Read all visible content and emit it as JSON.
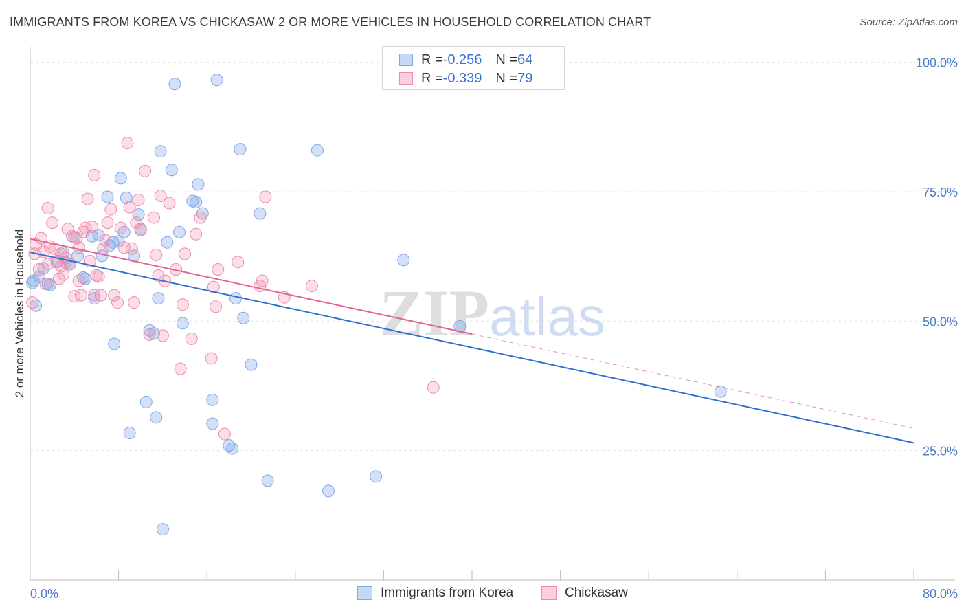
{
  "title": "IMMIGRANTS FROM KOREA VS CHICKASAW 2 OR MORE VEHICLES IN HOUSEHOLD CORRELATION CHART",
  "source": "Source: ZipAtlas.com",
  "watermark": {
    "zip": "ZIP",
    "atlas": "atlas"
  },
  "legend_top": [
    {
      "r_label": "R = ",
      "r_value": "-0.256",
      "n_label": "N = ",
      "n_value": "64",
      "color": "#7fa8e8"
    },
    {
      "r_label": "R = ",
      "r_value": "-0.339",
      "n_label": "N = ",
      "n_value": "79",
      "color": "#f08aaa"
    }
  ],
  "chart_data": {
    "type": "scatter",
    "title": "IMMIGRANTS FROM KOREA VS CHICKASAW 2 OR MORE VEHICLES IN HOUSEHOLD CORRELATION CHART",
    "xlabel": "",
    "ylabel": "2 or more Vehicles in Household",
    "xlim": [
      0,
      80
    ],
    "ylim": [
      0,
      103
    ],
    "x_tick_labels": [
      "0.0%",
      "80.0%"
    ],
    "y_ticks": [
      25,
      50,
      75,
      100
    ],
    "y_tick_labels": [
      "25.0%",
      "50.0%",
      "75.0%",
      "100.0%"
    ],
    "grid": true,
    "legend_position": "bottom",
    "series": [
      {
        "name": "Immigrants from Korea",
        "color": "#7fa8e8",
        "line_color": "#2e6fd0",
        "trend": {
          "x": [
            0,
            80
          ],
          "y": [
            63.3,
            26.5
          ],
          "dashed_extension": false
        },
        "points": [
          [
            0.3,
            57.8
          ],
          [
            0.5,
            53.0
          ],
          [
            0.8,
            58.6
          ],
          [
            1.2,
            60.2
          ],
          [
            1.6,
            57.2
          ],
          [
            1.8,
            57.0
          ],
          [
            2.5,
            61.6
          ],
          [
            3.0,
            63.2
          ],
          [
            3.2,
            61.4
          ],
          [
            4.0,
            66.2
          ],
          [
            4.3,
            62.6
          ],
          [
            4.8,
            58.4
          ],
          [
            5.0,
            58.2
          ],
          [
            5.6,
            66.4
          ],
          [
            5.8,
            54.4
          ],
          [
            6.2,
            66.6
          ],
          [
            6.5,
            62.6
          ],
          [
            7.0,
            74.0
          ],
          [
            7.2,
            64.6
          ],
          [
            7.5,
            65.2
          ],
          [
            7.6,
            45.6
          ],
          [
            8.0,
            65.4
          ],
          [
            8.2,
            77.6
          ],
          [
            8.5,
            67.2
          ],
          [
            8.7,
            73.8
          ],
          [
            9.0,
            28.4
          ],
          [
            9.4,
            62.6
          ],
          [
            9.8,
            70.6
          ],
          [
            10.0,
            67.8
          ],
          [
            10.5,
            34.4
          ],
          [
            10.8,
            48.2
          ],
          [
            11.2,
            47.6
          ],
          [
            11.4,
            31.4
          ],
          [
            11.6,
            54.4
          ],
          [
            11.8,
            82.8
          ],
          [
            12.0,
            9.8
          ],
          [
            12.4,
            65.2
          ],
          [
            12.8,
            79.2
          ],
          [
            13.1,
            95.8
          ],
          [
            13.5,
            67.2
          ],
          [
            13.8,
            49.6
          ],
          [
            14.7,
            73.2
          ],
          [
            15.0,
            73.0
          ],
          [
            15.2,
            76.4
          ],
          [
            15.6,
            70.8
          ],
          [
            16.5,
            30.2
          ],
          [
            16.5,
            34.8
          ],
          [
            16.9,
            96.6
          ],
          [
            18.0,
            26.0
          ],
          [
            18.3,
            25.4
          ],
          [
            18.6,
            54.4
          ],
          [
            19.0,
            83.2
          ],
          [
            19.3,
            50.6
          ],
          [
            20.0,
            41.6
          ],
          [
            20.8,
            70.8
          ],
          [
            21.5,
            19.2
          ],
          [
            26.0,
            83.0
          ],
          [
            27.0,
            17.2
          ],
          [
            31.3,
            20.0
          ],
          [
            33.8,
            61.8
          ],
          [
            38.9,
            49.0
          ],
          [
            62.5,
            36.4
          ],
          [
            0.2,
            57.4
          ],
          [
            3.6,
            61.0
          ]
        ]
      },
      {
        "name": "Chickasaw",
        "color": "#f08aaa",
        "line_color": "#e26590",
        "trend": {
          "x": [
            0,
            40
          ],
          "y": [
            65.9,
            47.5
          ],
          "dashed_to": [
            80,
            29.3
          ]
        },
        "points": [
          [
            0.2,
            53.6
          ],
          [
            0.5,
            64.8
          ],
          [
            0.8,
            60.0
          ],
          [
            1.0,
            66.0
          ],
          [
            1.2,
            63.4
          ],
          [
            1.4,
            57.2
          ],
          [
            1.6,
            71.8
          ],
          [
            1.8,
            64.4
          ],
          [
            2.0,
            69.0
          ],
          [
            2.2,
            64.0
          ],
          [
            2.4,
            61.4
          ],
          [
            2.6,
            58.2
          ],
          [
            2.8,
            63.0
          ],
          [
            3.0,
            59.0
          ],
          [
            3.2,
            62.2
          ],
          [
            3.4,
            67.8
          ],
          [
            3.6,
            61.0
          ],
          [
            3.8,
            66.4
          ],
          [
            4.0,
            54.8
          ],
          [
            4.2,
            66.0
          ],
          [
            4.4,
            64.2
          ],
          [
            4.6,
            55.0
          ],
          [
            4.8,
            67.2
          ],
          [
            5.0,
            68.0
          ],
          [
            5.2,
            73.6
          ],
          [
            5.4,
            61.6
          ],
          [
            5.6,
            68.2
          ],
          [
            5.8,
            78.2
          ],
          [
            6.0,
            58.8
          ],
          [
            6.2,
            58.6
          ],
          [
            6.4,
            55.0
          ],
          [
            6.6,
            64.0
          ],
          [
            6.8,
            65.6
          ],
          [
            7.0,
            69.0
          ],
          [
            7.3,
            71.6
          ],
          [
            7.6,
            55.0
          ],
          [
            7.9,
            53.6
          ],
          [
            8.2,
            68.0
          ],
          [
            8.5,
            64.2
          ],
          [
            8.8,
            84.4
          ],
          [
            9.0,
            72.0
          ],
          [
            9.2,
            64.0
          ],
          [
            9.4,
            53.6
          ],
          [
            9.6,
            69.0
          ],
          [
            9.8,
            73.4
          ],
          [
            10.0,
            67.6
          ],
          [
            10.4,
            79.0
          ],
          [
            10.8,
            47.4
          ],
          [
            11.2,
            70.0
          ],
          [
            11.4,
            62.8
          ],
          [
            11.6,
            58.8
          ],
          [
            11.8,
            74.2
          ],
          [
            12.0,
            47.2
          ],
          [
            12.2,
            57.8
          ],
          [
            12.6,
            72.8
          ],
          [
            13.2,
            60.0
          ],
          [
            13.6,
            40.8
          ],
          [
            13.8,
            53.2
          ],
          [
            14.0,
            63.0
          ],
          [
            14.6,
            46.6
          ],
          [
            15.0,
            66.8
          ],
          [
            15.4,
            70.0
          ],
          [
            16.4,
            42.8
          ],
          [
            16.6,
            56.6
          ],
          [
            16.8,
            52.8
          ],
          [
            17.0,
            60.0
          ],
          [
            17.6,
            28.2
          ],
          [
            18.8,
            61.4
          ],
          [
            20.8,
            56.8
          ],
          [
            21.0,
            57.8
          ],
          [
            21.3,
            74.0
          ],
          [
            23.0,
            54.6
          ],
          [
            25.5,
            56.8
          ],
          [
            36.5,
            37.2
          ],
          [
            0.4,
            63.0
          ],
          [
            1.6,
            61.0
          ],
          [
            2.8,
            60.6
          ],
          [
            4.4,
            57.8
          ],
          [
            5.8,
            55.0
          ]
        ]
      }
    ]
  }
}
